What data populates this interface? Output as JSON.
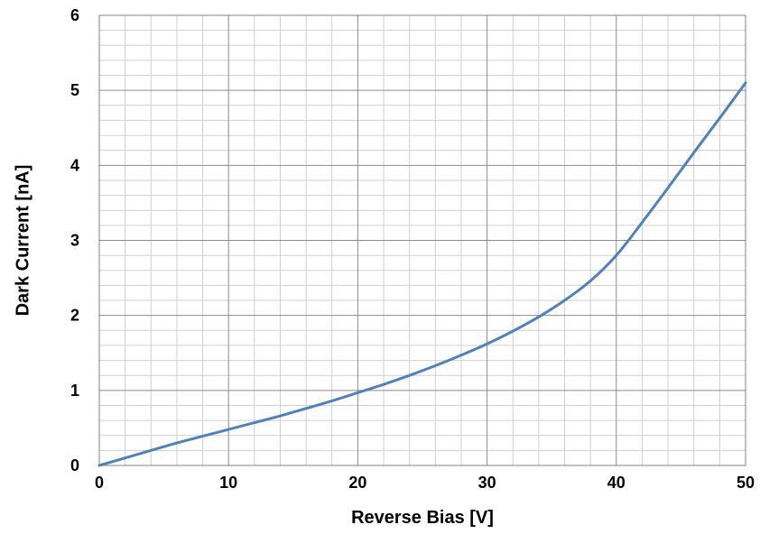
{
  "chart_data": {
    "type": "line",
    "title": "",
    "xlabel": "Reverse Bias [V]",
    "ylabel": "Dark Current [nA]",
    "xlim": [
      0,
      50
    ],
    "ylim": [
      0,
      6
    ],
    "x_major_step": 10,
    "y_major_step": 1,
    "x_minor_step": 2,
    "y_minor_step": 0.2,
    "grid": true,
    "x_tick_labels": [
      "0",
      "10",
      "20",
      "30",
      "40",
      "50"
    ],
    "y_tick_labels": [
      "0",
      "1",
      "2",
      "3",
      "4",
      "5",
      "6"
    ],
    "series": [
      {
        "color": "#4f81bd",
        "x": [
          0,
          2,
          4,
          6,
          8,
          10,
          12,
          14,
          16,
          18,
          20,
          22,
          24,
          26,
          28,
          30,
          32,
          34,
          36,
          38,
          40,
          42,
          44,
          46,
          48,
          50
        ],
        "y": [
          0.0,
          0.1,
          0.2,
          0.3,
          0.39,
          0.48,
          0.57,
          0.66,
          0.76,
          0.86,
          0.97,
          1.08,
          1.2,
          1.33,
          1.47,
          1.62,
          1.79,
          1.98,
          2.2,
          2.46,
          2.8,
          3.24,
          3.7,
          4.17,
          4.63,
          5.1
        ]
      }
    ]
  }
}
